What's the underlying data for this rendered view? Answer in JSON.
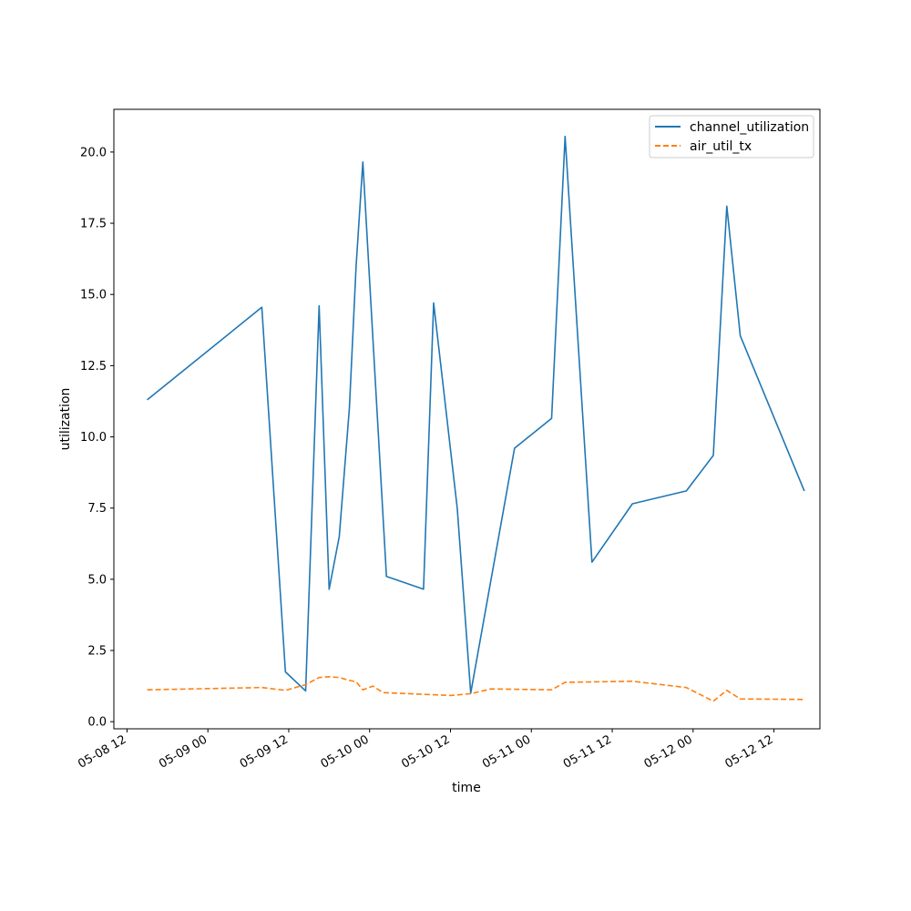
{
  "chart_data": {
    "type": "line",
    "title": "",
    "xlabel": "time",
    "ylabel": "utilization",
    "xlim": [
      "2024-05-08 10:03",
      "2024-05-12 18:49"
    ],
    "ylim": [
      -0.25,
      21.5
    ],
    "x_ticks": [
      "05-08 12",
      "05-09 00",
      "05-09 12",
      "05-10 00",
      "05-10 12",
      "05-11 00",
      "05-11 12",
      "05-12 00",
      "05-12 12"
    ],
    "y_ticks": [
      "0.0",
      "2.5",
      "5.0",
      "7.5",
      "10.0",
      "12.5",
      "15.0",
      "17.5",
      "20.0"
    ],
    "grid": false,
    "legend_position": "top-right",
    "series": [
      {
        "name": "channel_utilization",
        "color": "#1f77b4",
        "style": "solid",
        "points": [
          [
            "2024-05-08 15:00",
            11.3
          ],
          [
            "2024-05-09 08:00",
            14.55
          ],
          [
            "2024-05-09 11:30",
            1.75
          ],
          [
            "2024-05-09 14:30",
            1.08
          ],
          [
            "2024-05-09 16:30",
            14.6
          ],
          [
            "2024-05-09 18:00",
            4.65
          ],
          [
            "2024-05-09 19:30",
            6.5
          ],
          [
            "2024-05-09 21:00",
            11.0
          ],
          [
            "2024-05-09 22:00",
            16.0
          ],
          [
            "2024-05-09 23:00",
            19.65
          ],
          [
            "2024-05-10 02:30",
            5.1
          ],
          [
            "2024-05-10 08:00",
            4.65
          ],
          [
            "2024-05-10 09:30",
            14.7
          ],
          [
            "2024-05-10 13:00",
            7.5
          ],
          [
            "2024-05-10 15:00",
            1.0
          ],
          [
            "2024-05-10 21:30",
            9.6
          ],
          [
            "2024-05-11 03:00",
            10.65
          ],
          [
            "2024-05-11 05:00",
            20.55
          ],
          [
            "2024-05-11 09:00",
            5.6
          ],
          [
            "2024-05-11 15:00",
            7.65
          ],
          [
            "2024-05-11 23:00",
            8.1
          ],
          [
            "2024-05-12 03:00",
            9.35
          ],
          [
            "2024-05-12 05:00",
            18.1
          ],
          [
            "2024-05-12 07:00",
            13.55
          ],
          [
            "2024-05-12 16:30",
            8.1
          ]
        ]
      },
      {
        "name": "air_util_tx",
        "color": "#ff7f0e",
        "style": "dashed",
        "points": [
          [
            "2024-05-08 15:00",
            1.12
          ],
          [
            "2024-05-09 08:00",
            1.2
          ],
          [
            "2024-05-09 11:30",
            1.1
          ],
          [
            "2024-05-09 14:30",
            1.3
          ],
          [
            "2024-05-09 16:30",
            1.55
          ],
          [
            "2024-05-09 18:00",
            1.58
          ],
          [
            "2024-05-09 19:30",
            1.55
          ],
          [
            "2024-05-09 21:00",
            1.45
          ],
          [
            "2024-05-09 22:00",
            1.4
          ],
          [
            "2024-05-09 23:00",
            1.12
          ],
          [
            "2024-05-10 00:30",
            1.25
          ],
          [
            "2024-05-10 02:00",
            1.02
          ],
          [
            "2024-05-10 12:00",
            0.92
          ],
          [
            "2024-05-10 15:00",
            0.98
          ],
          [
            "2024-05-10 18:00",
            1.15
          ],
          [
            "2024-05-11 03:00",
            1.12
          ],
          [
            "2024-05-11 05:00",
            1.38
          ],
          [
            "2024-05-11 15:00",
            1.42
          ],
          [
            "2024-05-11 23:00",
            1.2
          ],
          [
            "2024-05-12 03:00",
            0.72
          ],
          [
            "2024-05-12 05:00",
            1.1
          ],
          [
            "2024-05-12 07:00",
            0.8
          ],
          [
            "2024-05-12 16:30",
            0.78
          ]
        ]
      }
    ]
  }
}
